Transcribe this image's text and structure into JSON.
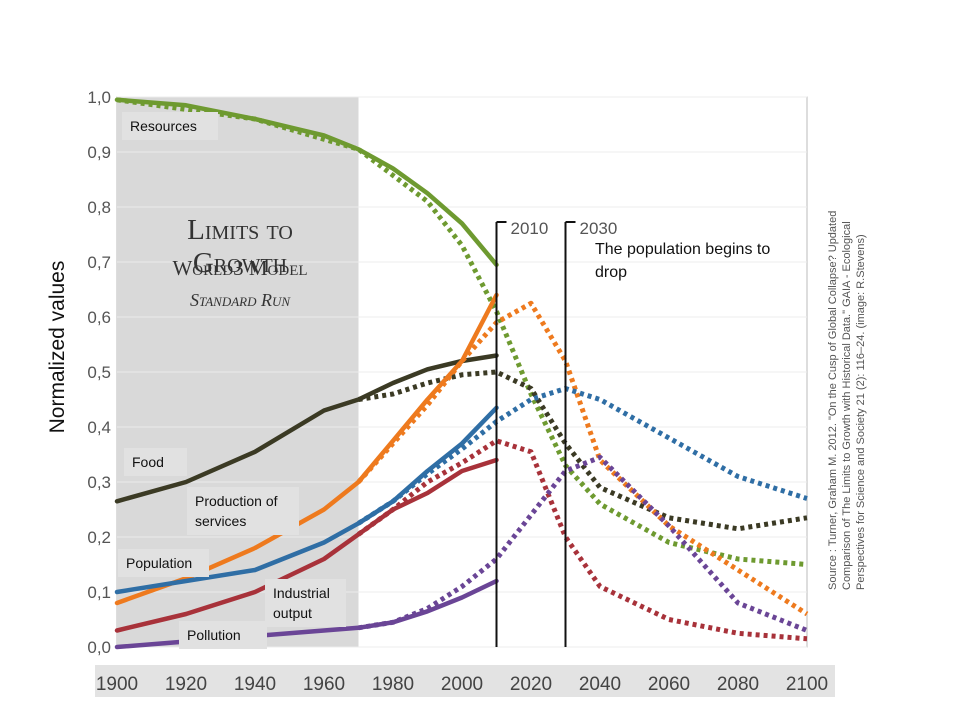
{
  "chart_data": {
    "type": "line",
    "title": "",
    "ylabel": "Normalized values",
    "xlabel": "",
    "xlim": [
      1900,
      2100
    ],
    "ylim": [
      0,
      1.0
    ],
    "x_ticks": [
      "1900",
      "1920",
      "1940",
      "1960",
      "1980",
      "2000",
      "2020",
      "2040",
      "2060",
      "2080",
      "2100"
    ],
    "y_ticks": [
      "0,0",
      "0,1",
      "0,2",
      "0,3",
      "0,4",
      "0,5",
      "0,6",
      "0,7",
      "0,8",
      "0,9",
      "1,0"
    ],
    "grid": true,
    "historical_period": [
      1900,
      1970
    ],
    "banner": [
      "Limits to Growth",
      "World3 Model",
      "Standard Run"
    ],
    "markers": [
      {
        "label": "2010",
        "x": 2010
      },
      {
        "label": "2030",
        "x": 2030
      }
    ],
    "annotation": "The population begins to drop",
    "source": "Source : Turner, Graham M. 2012. \"On the Cusp of Global Collapse? Updated Comparison of The Limits to Growth with Historical Data.\" GAIA - Ecological Perspectives for Science and Society 21 (2): 116–24. (image: R.Stevens)",
    "series": [
      {
        "name": "Resources",
        "color": "#6e9a30",
        "observed": [
          [
            1900,
            0.995
          ],
          [
            1920,
            0.985
          ],
          [
            1940,
            0.96
          ],
          [
            1960,
            0.93
          ],
          [
            1970,
            0.905
          ],
          [
            1980,
            0.87
          ],
          [
            1990,
            0.825
          ],
          [
            2000,
            0.77
          ],
          [
            2010,
            0.695
          ]
        ],
        "model": [
          [
            1900,
            0.995
          ],
          [
            1940,
            0.96
          ],
          [
            1970,
            0.905
          ],
          [
            1990,
            0.81
          ],
          [
            2000,
            0.73
          ],
          [
            2010,
            0.61
          ],
          [
            2020,
            0.46
          ],
          [
            2030,
            0.33
          ],
          [
            2040,
            0.26
          ],
          [
            2060,
            0.19
          ],
          [
            2080,
            0.16
          ],
          [
            2100,
            0.15
          ]
        ]
      },
      {
        "name": "Food",
        "color": "#3b3a24",
        "observed": [
          [
            1900,
            0.265
          ],
          [
            1920,
            0.3
          ],
          [
            1940,
            0.355
          ],
          [
            1960,
            0.43
          ],
          [
            1970,
            0.45
          ],
          [
            1980,
            0.48
          ],
          [
            1990,
            0.505
          ],
          [
            2000,
            0.52
          ],
          [
            2010,
            0.53
          ]
        ],
        "model": [
          [
            1970,
            0.45
          ],
          [
            1980,
            0.46
          ],
          [
            1990,
            0.48
          ],
          [
            2000,
            0.495
          ],
          [
            2010,
            0.5
          ],
          [
            2020,
            0.47
          ],
          [
            2030,
            0.37
          ],
          [
            2040,
            0.29
          ],
          [
            2060,
            0.235
          ],
          [
            2080,
            0.215
          ],
          [
            2100,
            0.235
          ]
        ]
      },
      {
        "name": "Production of services",
        "color": "#ee7a1e",
        "observed": [
          [
            1900,
            0.08
          ],
          [
            1920,
            0.125
          ],
          [
            1940,
            0.18
          ],
          [
            1960,
            0.25
          ],
          [
            1970,
            0.3
          ],
          [
            1980,
            0.375
          ],
          [
            1990,
            0.45
          ],
          [
            2000,
            0.52
          ],
          [
            2010,
            0.64
          ]
        ],
        "model": [
          [
            1970,
            0.3
          ],
          [
            1980,
            0.37
          ],
          [
            1990,
            0.44
          ],
          [
            2000,
            0.52
          ],
          [
            2010,
            0.59
          ],
          [
            2020,
            0.625
          ],
          [
            2030,
            0.52
          ],
          [
            2040,
            0.34
          ],
          [
            2060,
            0.22
          ],
          [
            2080,
            0.14
          ],
          [
            2100,
            0.06
          ]
        ]
      },
      {
        "name": "Population",
        "color": "#2f6ea5",
        "observed": [
          [
            1900,
            0.1
          ],
          [
            1920,
            0.12
          ],
          [
            1940,
            0.14
          ],
          [
            1960,
            0.19
          ],
          [
            1970,
            0.225
          ],
          [
            1980,
            0.265
          ],
          [
            1990,
            0.32
          ],
          [
            2000,
            0.37
          ],
          [
            2010,
            0.435
          ]
        ],
        "model": [
          [
            1970,
            0.225
          ],
          [
            1980,
            0.265
          ],
          [
            1990,
            0.315
          ],
          [
            2000,
            0.36
          ],
          [
            2010,
            0.41
          ],
          [
            2020,
            0.45
          ],
          [
            2030,
            0.47
          ],
          [
            2040,
            0.45
          ],
          [
            2060,
            0.38
          ],
          [
            2080,
            0.31
          ],
          [
            2100,
            0.27
          ]
        ]
      },
      {
        "name": "Industrial output",
        "color": "#a8323a",
        "observed": [
          [
            1900,
            0.03
          ],
          [
            1920,
            0.06
          ],
          [
            1940,
            0.1
          ],
          [
            1960,
            0.16
          ],
          [
            1970,
            0.205
          ],
          [
            1980,
            0.25
          ],
          [
            1990,
            0.28
          ],
          [
            2000,
            0.32
          ],
          [
            2010,
            0.34
          ]
        ],
        "model": [
          [
            1970,
            0.205
          ],
          [
            1980,
            0.25
          ],
          [
            1990,
            0.3
          ],
          [
            2000,
            0.335
          ],
          [
            2010,
            0.375
          ],
          [
            2020,
            0.355
          ],
          [
            2030,
            0.2
          ],
          [
            2040,
            0.11
          ],
          [
            2060,
            0.05
          ],
          [
            2080,
            0.025
          ],
          [
            2100,
            0.015
          ]
        ]
      },
      {
        "name": "Pollution",
        "color": "#6a4596",
        "observed": [
          [
            1900,
            0.0
          ],
          [
            1920,
            0.01
          ],
          [
            1940,
            0.02
          ],
          [
            1960,
            0.03
          ],
          [
            1970,
            0.035
          ],
          [
            1980,
            0.045
          ],
          [
            1990,
            0.065
          ],
          [
            2000,
            0.09
          ],
          [
            2010,
            0.12
          ]
        ],
        "model": [
          [
            1970,
            0.035
          ],
          [
            1980,
            0.045
          ],
          [
            1990,
            0.07
          ],
          [
            2000,
            0.11
          ],
          [
            2010,
            0.16
          ],
          [
            2020,
            0.24
          ],
          [
            2030,
            0.32
          ],
          [
            2040,
            0.345
          ],
          [
            2060,
            0.22
          ],
          [
            2080,
            0.08
          ],
          [
            2100,
            0.03
          ]
        ]
      }
    ]
  }
}
